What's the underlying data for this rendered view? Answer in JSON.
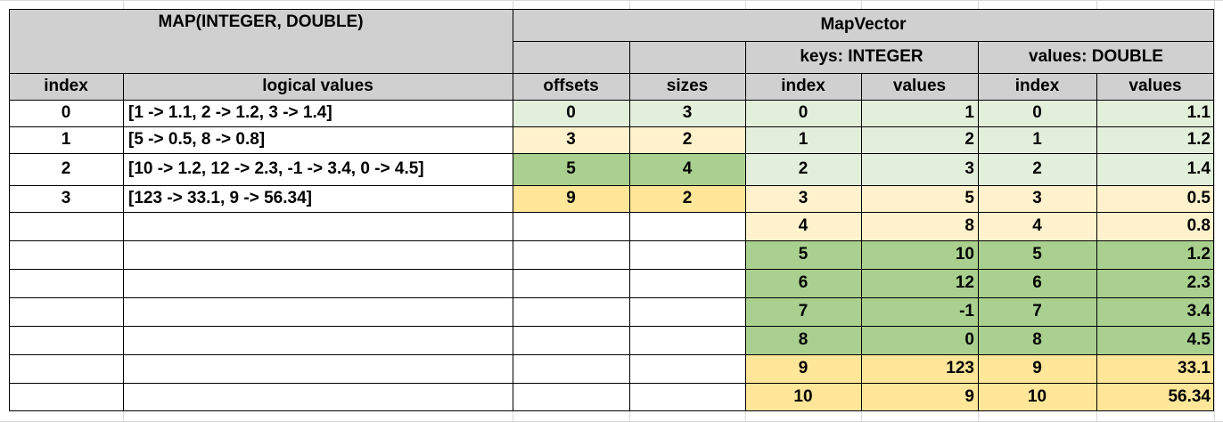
{
  "left_table": {
    "title": "MAP(INTEGER, DOUBLE)",
    "headers": {
      "index": "index",
      "logical_values": "logical values"
    },
    "rows": [
      {
        "index": "0",
        "value": "[1 -> 1.1, 2 -> 1.2, 3 -> 1.4]"
      },
      {
        "index": "1",
        "value": "[5 -> 0.5, 8 -> 0.8]"
      },
      {
        "index": "2",
        "value": "[10 -> 1.2, 12 -> 2.3, -1 -> 3.4, 0 -> 4.5]"
      },
      {
        "index": "3",
        "value": "[123 -> 33.1, 9 -> 56.34]"
      }
    ]
  },
  "right_table": {
    "title": "MapVector",
    "keys_title": "keys: INTEGER",
    "values_title": "values: DOUBLE",
    "headers": {
      "offsets": "offsets",
      "sizes": "sizes",
      "keys_index": "index",
      "keys_values": "values",
      "vals_index": "index",
      "vals_values": "values"
    },
    "offsets_sizes": [
      {
        "offset": "0",
        "size": "3"
      },
      {
        "offset": "3",
        "size": "2"
      },
      {
        "offset": "5",
        "size": "4"
      },
      {
        "offset": "9",
        "size": "2"
      }
    ],
    "entries": [
      {
        "key_index": "0",
        "key": "1",
        "val_index": "0",
        "val": "1.1"
      },
      {
        "key_index": "1",
        "key": "2",
        "val_index": "1",
        "val": "1.2"
      },
      {
        "key_index": "2",
        "key": "3",
        "val_index": "2",
        "val": "1.4"
      },
      {
        "key_index": "3",
        "key": "5",
        "val_index": "3",
        "val": "0.5"
      },
      {
        "key_index": "4",
        "key": "8",
        "val_index": "4",
        "val": "0.8"
      },
      {
        "key_index": "5",
        "key": "10",
        "val_index": "5",
        "val": "1.2"
      },
      {
        "key_index": "6",
        "key": "12",
        "val_index": "6",
        "val": "2.3"
      },
      {
        "key_index": "7",
        "key": "-1",
        "val_index": "7",
        "val": "3.4"
      },
      {
        "key_index": "8",
        "key": "0",
        "val_index": "8",
        "val": "4.5"
      },
      {
        "key_index": "9",
        "key": "123",
        "val_index": "9",
        "val": "33.1"
      },
      {
        "key_index": "10",
        "key": "9",
        "val_index": "10",
        "val": "56.34"
      }
    ]
  },
  "colors": {
    "header_gray": "#d0d0d0",
    "light_green": "#e2efda",
    "light_yellow": "#fff2cc",
    "dark_green": "#a9d08e",
    "dark_yellow": "#ffe699"
  }
}
